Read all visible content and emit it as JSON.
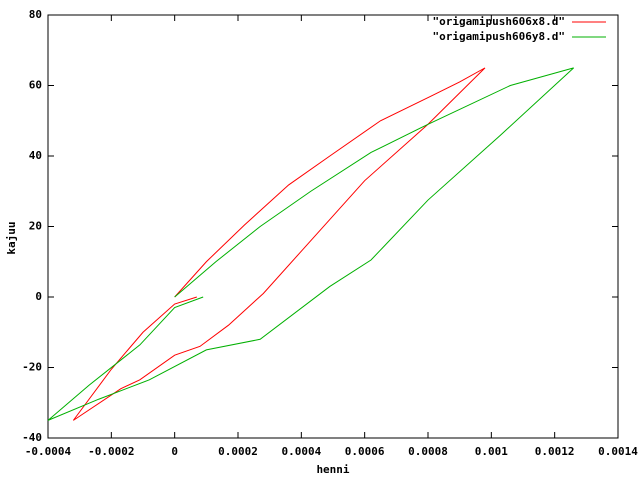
{
  "chart_data": {
    "type": "line",
    "x_label": "henni",
    "y_label": "kajuu",
    "xlim": [
      -0.0004,
      0.0014
    ],
    "ylim": [
      -40,
      80
    ],
    "xticks": [
      -0.0004,
      -0.0002,
      0,
      0.0002,
      0.0004,
      0.0006,
      0.0008,
      0.001,
      0.0012,
      0.0014
    ],
    "yticks": [
      -40,
      -20,
      0,
      20,
      40,
      60,
      80
    ],
    "legend": "top-right",
    "series": [
      {
        "name": "\"origamipush606x8.d\"",
        "color": "#ff0000",
        "x": [
          0,
          0.0001,
          0.00022,
          0.00036,
          0.00049,
          0.00065,
          0.00081,
          0.0009,
          0.00098,
          0.0008,
          0.0006,
          0.0004,
          0.00028,
          0.00017,
          8e-05,
          0,
          -0.00011,
          -0.00017,
          -0.00032,
          -0.0002,
          -0.0001,
          0,
          7e-05
        ],
        "values": [
          0,
          10,
          20.4,
          31.8,
          40,
          50,
          57,
          61,
          65,
          49,
          33,
          13,
          1,
          -8,
          -14,
          -16.5,
          -23.5,
          -26,
          -35,
          -20.5,
          -10,
          -2,
          0
        ]
      },
      {
        "name": "\"origamipush606y8.d\"",
        "color": "#00b000",
        "x": [
          0,
          0.00013,
          0.00027,
          0.00043,
          0.00062,
          0.0008,
          0.00106,
          0.00126,
          0.00103,
          0.0008,
          0.00062,
          0.00049,
          0.00027,
          0.0001,
          -8e-05,
          -0.00024,
          -0.0004,
          -0.00027,
          -0.00011,
          0,
          9e-05
        ],
        "values": [
          0,
          10,
          20,
          30,
          41,
          49,
          60,
          65,
          46,
          27.5,
          10.5,
          3,
          -12,
          -15,
          -23.5,
          -29,
          -35,
          -25,
          -13.6,
          -3,
          0
        ]
      }
    ]
  }
}
